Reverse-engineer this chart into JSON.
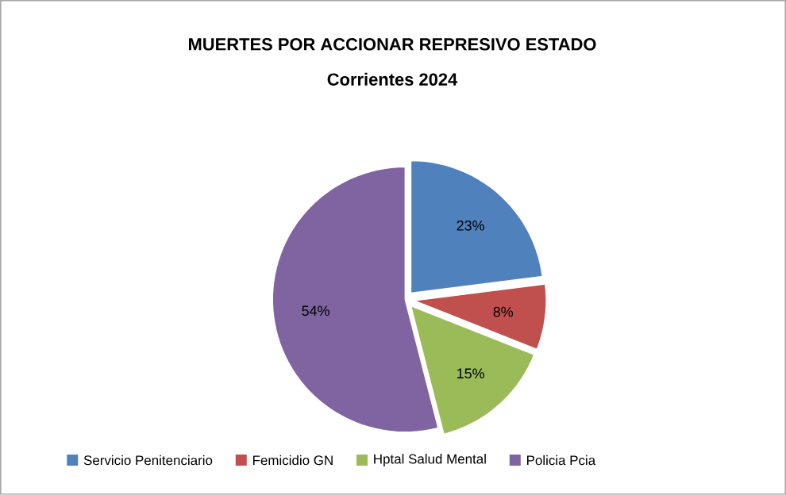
{
  "chart_data": {
    "type": "pie",
    "title": "MUERTES POR ACCIONAR REPRESIVO ESTADO",
    "subtitle": "Corrientes 2024",
    "categories": [
      "Servicio Penitenciario",
      "Femicidio GN",
      "Hptal Salud Mental",
      "Policia Pcia"
    ],
    "values": [
      23,
      8,
      15,
      54
    ],
    "value_labels": [
      "23%",
      "8%",
      "15%",
      "54%"
    ],
    "colors": [
      "#4f81bd",
      "#c0504d",
      "#9bbb59",
      "#8064a2"
    ],
    "legend": "bottom"
  }
}
